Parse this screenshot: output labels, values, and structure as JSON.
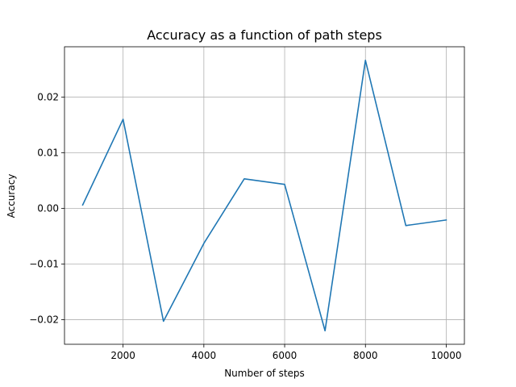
{
  "chart_data": {
    "type": "line",
    "title": "Accuracy as a function of path steps",
    "xlabel": "Number of steps",
    "ylabel": "Accuracy",
    "x": [
      1000,
      2000,
      3000,
      4000,
      5000,
      6000,
      7000,
      8000,
      9000,
      10000
    ],
    "series": [
      {
        "values": [
          0.0006,
          0.016,
          -0.0203,
          -0.0063,
          0.0053,
          0.0043,
          -0.022,
          0.0266,
          -0.0031,
          -0.0021
        ],
        "color": "#1f77b4"
      }
    ],
    "xticks": [
      2000,
      4000,
      6000,
      8000,
      10000
    ],
    "xtick_labels": [
      "2000",
      "4000",
      "6000",
      "8000",
      "10000"
    ],
    "yticks": [
      -0.02,
      -0.01,
      0.0,
      0.01,
      0.02
    ],
    "ytick_labels": [
      "−0.02",
      "−0.01",
      "0.00",
      "0.01",
      "0.02"
    ],
    "xlim": [
      550,
      10450
    ],
    "ylim": [
      -0.02443,
      0.02903
    ],
    "grid": true
  }
}
